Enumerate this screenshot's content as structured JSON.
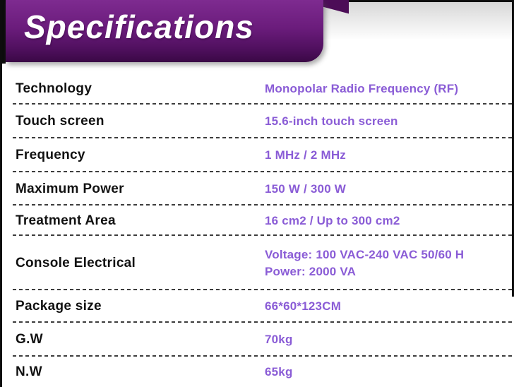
{
  "banner": {
    "title": "Specifications"
  },
  "colors": {
    "banner_top": "#7e2b90",
    "banner_text": "#ffffff",
    "fold_color": "#4c0d57",
    "label_color": "#111111",
    "value_color": "#8a5cd6",
    "sep_color": "#3d3d3d",
    "edge_color": "#0d0d0d"
  },
  "table": {
    "rows": [
      {
        "label": "Technology",
        "values": [
          "Monopolar Radio Frequency (RF)"
        ]
      },
      {
        "label": "Touch screen",
        "values": [
          "15.6-inch touch screen"
        ]
      },
      {
        "label": "Frequency",
        "values": [
          "1 MHz / 2 MHz"
        ]
      },
      {
        "label": "Maximum Power",
        "values": [
          "150 W / 300 W"
        ]
      },
      {
        "label": "Treatment Area",
        "values": [
          "16 cm2 / Up to 300 cm2"
        ]
      },
      {
        "label": "Console Electrical",
        "values": [
          "Voltage: 100 VAC-240 VAC 50/60 H",
          "Power: 2000 VA"
        ]
      },
      {
        "label": "Package size",
        "values": [
          "66*60*123CM"
        ]
      },
      {
        "label": "G.W",
        "values": [
          "70kg"
        ]
      },
      {
        "label": "N.W",
        "values": [
          "65kg"
        ]
      }
    ]
  }
}
